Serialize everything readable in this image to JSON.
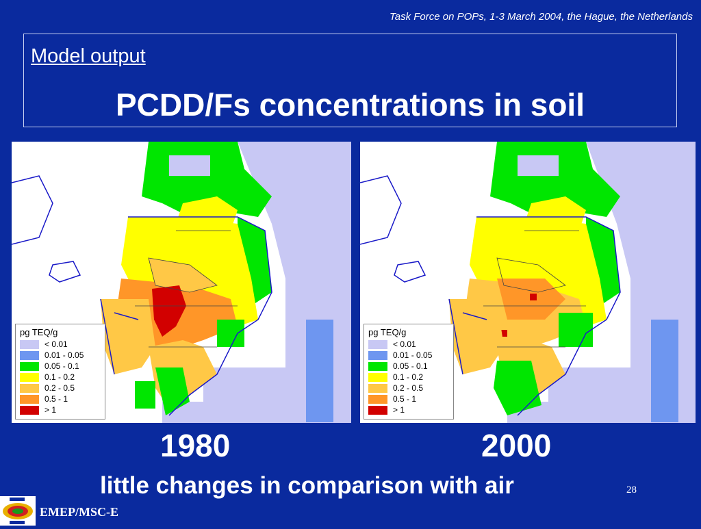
{
  "header": {
    "note": "Task Force on POPs, 1-3 March 2004, the Hague, the Netherlands"
  },
  "title": {
    "subtitle": "Model output",
    "main": "PCDD/Fs concentrations in soil"
  },
  "legend": {
    "title": "pg TEQ/g",
    "items": [
      {
        "label": "< 0.01",
        "color": "#c8c8f4"
      },
      {
        "label": "0.01 - 0.05",
        "color": "#6e96f0"
      },
      {
        "label": "0.05 - 0.1",
        "color": "#00e600"
      },
      {
        "label": "0.1 - 0.2",
        "color": "#ffff00"
      },
      {
        "label": "0.2 - 0.5",
        "color": "#ffc846"
      },
      {
        "label": "0.5 - 1",
        "color": "#ff9628"
      },
      {
        "label": "> 1",
        "color": "#d20000"
      }
    ]
  },
  "maps": [
    {
      "year": "1980"
    },
    {
      "year": "2000"
    }
  ],
  "caption": "little changes in comparison with air",
  "page_number": "28",
  "footer": {
    "org": "EMEP/MSC-E"
  },
  "colors": {
    "background": "#0a2a9e",
    "text": "#ffffff"
  }
}
